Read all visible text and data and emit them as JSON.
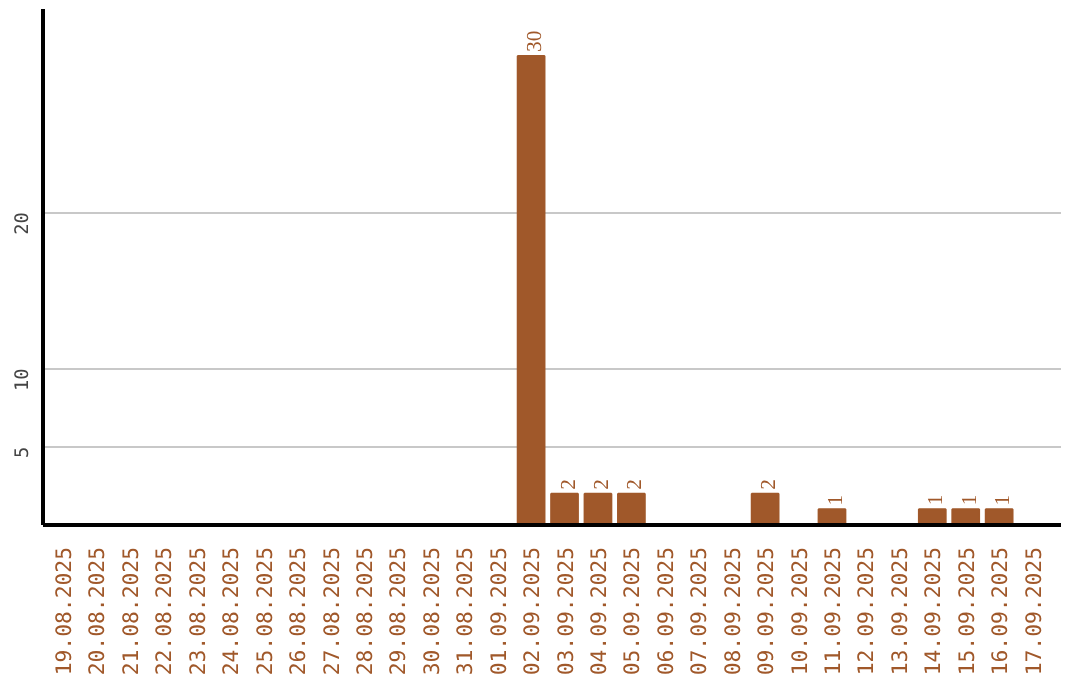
{
  "chart_data": {
    "type": "bar",
    "categories": [
      "19.08.2025",
      "20.08.2025",
      "21.08.2025",
      "22.08.2025",
      "23.08.2025",
      "24.08.2025",
      "25.08.2025",
      "26.08.2025",
      "27.08.2025",
      "28.08.2025",
      "29.08.2025",
      "30.08.2025",
      "31.08.2025",
      "01.09.2025",
      "02.09.2025",
      "03.09.2025",
      "04.09.2025",
      "05.09.2025",
      "06.09.2025",
      "07.09.2025",
      "08.09.2025",
      "09.09.2025",
      "10.09.2025",
      "11.09.2025",
      "12.09.2025",
      "13.09.2025",
      "14.09.2025",
      "15.09.2025",
      "16.09.2025",
      "17.09.2025"
    ],
    "values": [
      0,
      0,
      0,
      0,
      0,
      0,
      0,
      0,
      0,
      0,
      0,
      0,
      0,
      0,
      30,
      2,
      2,
      2,
      0,
      0,
      0,
      2,
      0,
      1,
      0,
      0,
      1,
      1,
      1,
      0
    ],
    "value_labels": [
      null,
      null,
      null,
      null,
      null,
      null,
      null,
      null,
      null,
      null,
      null,
      null,
      null,
      null,
      "30",
      "2",
      "2",
      "2",
      null,
      null,
      null,
      "2",
      null,
      "1",
      null,
      null,
      "1",
      "1",
      "1",
      null
    ],
    "color": "#a0582a",
    "ylim": [
      0,
      33
    ],
    "yticks": [
      5,
      10,
      20
    ],
    "grid": "y"
  }
}
